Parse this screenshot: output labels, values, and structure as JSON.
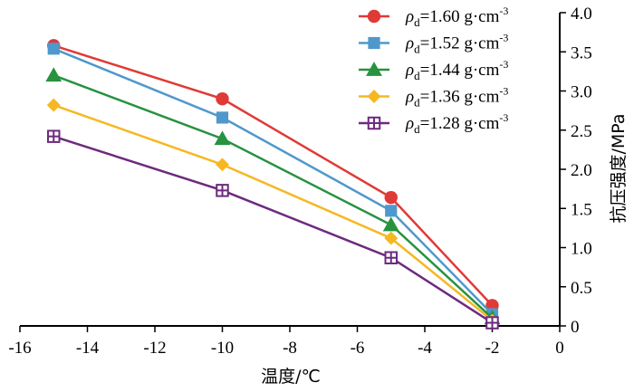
{
  "chart_data": {
    "type": "line",
    "xlabel": "温度/℃",
    "ylabel": "抗压强度/MPa",
    "xlim": [
      -16,
      0
    ],
    "ylim": [
      0,
      4.0
    ],
    "x_ticks": [
      "-16",
      "-14",
      "-12",
      "-10",
      "-8",
      "-6",
      "-4",
      "-2",
      "0"
    ],
    "y_ticks": [
      "0",
      "0.5",
      "1.0",
      "1.5",
      "2.0",
      "2.5",
      "3.0",
      "3.5",
      "4.0"
    ],
    "x": [
      -15,
      -10,
      -5,
      -2
    ],
    "legend_position": "top-right",
    "series": [
      {
        "symbol": "ρ",
        "sub": "d",
        "value_text": "=1.60 g·cm",
        "sup": "-3",
        "color": "#e03a36",
        "marker": "circle",
        "values": [
          3.58,
          2.9,
          1.64,
          0.26
        ]
      },
      {
        "symbol": "ρ",
        "sub": "d",
        "value_text": "=1.52 g·cm",
        "sup": "-3",
        "color": "#4f98cc",
        "marker": "square",
        "values": [
          3.54,
          2.66,
          1.47,
          0.15
        ]
      },
      {
        "symbol": "ρ",
        "sub": "d",
        "value_text": "=1.44 g·cm",
        "sup": "-3",
        "color": "#27923f",
        "marker": "triangle",
        "values": [
          3.2,
          2.39,
          1.29,
          0.1
        ]
      },
      {
        "symbol": "ρ",
        "sub": "d",
        "value_text": "=1.36 g·cm",
        "sup": "-3",
        "color": "#f5b823",
        "marker": "diamond",
        "values": [
          2.82,
          2.06,
          1.12,
          0.07
        ]
      },
      {
        "symbol": "ρ",
        "sub": "d",
        "value_text": "=1.28 g·cm",
        "sup": "-3",
        "color": "#6d2a7e",
        "marker": "crossed-square",
        "values": [
          2.42,
          1.73,
          0.87,
          0.04
        ]
      }
    ]
  }
}
